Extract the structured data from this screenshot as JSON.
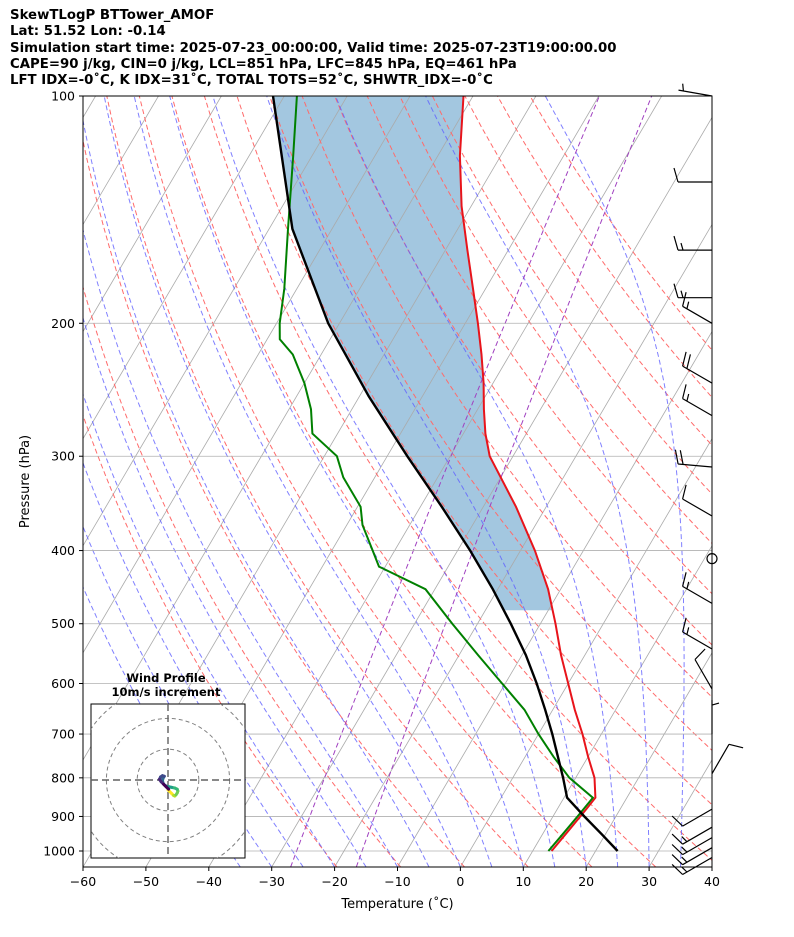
{
  "header": {
    "line1": "SkewTLogP BTTower_AMOF",
    "line2": "Lat: 51.52   Lon: -0.14",
    "line3": "Simulation start time: 2025-07-23_00:00:00, Valid time: 2025-07-23T19:00:00.00",
    "line4": "CAPE=90 j/kg, CIN=0 j/kg, LCL=851 hPa, LFC=845 hPa, EQ=461 hPa",
    "line5": "LFT IDX=-0˚C, K IDX=31˚C, TOTAL TOTS=52˚C, SHWTR_IDX=-0˚C"
  },
  "chart_data": {
    "type": "skewt",
    "xlabel": "Temperature (˚C)",
    "ylabel": "Pressure (hPa)",
    "xlim": [
      -60,
      40
    ],
    "ylim": [
      1050,
      100
    ],
    "x_ticks": [
      -60,
      -50,
      -40,
      -30,
      -20,
      -10,
      0,
      10,
      20,
      30,
      40
    ],
    "y_ticks": [
      100,
      200,
      300,
      400,
      500,
      600,
      700,
      800,
      900,
      1000
    ],
    "colors": {
      "temperature": "#e8141b",
      "dewpoint": "#008000",
      "parcel": "#000000",
      "cape_fill": "#a3c7e0",
      "dry_adiabats": "#ff6b6b",
      "moist_adiabats": "#6060ff",
      "mixing_ratio": "#a040c0",
      "isotherms": "#aaaaaa"
    },
    "temperature": {
      "p": [
        1000,
        940,
        880,
        850,
        800,
        750,
        700,
        650,
        600,
        550,
        500,
        450,
        400,
        350,
        300,
        280,
        260,
        240,
        220,
        200,
        180,
        160,
        140,
        120,
        100
      ],
      "t": [
        13.0,
        13.8,
        14.6,
        15.0,
        13.0,
        10.0,
        7.0,
        3.5,
        0.0,
        -3.8,
        -7.6,
        -12.0,
        -17.7,
        -24.8,
        -33.7,
        -36.5,
        -39.0,
        -41.5,
        -44.5,
        -48.0,
        -52.0,
        -56.5,
        -61.5,
        -66.5,
        -71.5
      ]
    },
    "dewpoint": {
      "p": [
        1000,
        950,
        900,
        850,
        800,
        750,
        700,
        650,
        600,
        550,
        500,
        450,
        420,
        400,
        370,
        350,
        320,
        300,
        280,
        260,
        240,
        220,
        210,
        200,
        180,
        150,
        120,
        100
      ],
      "td": [
        12.5,
        13.2,
        13.9,
        14.6,
        9.0,
        4.5,
        0.0,
        -4.5,
        -10.5,
        -17.0,
        -24.0,
        -31.5,
        -41.0,
        -43.5,
        -47.5,
        -49.5,
        -55.0,
        -58.0,
        -64.0,
        -66.5,
        -70.0,
        -74.5,
        -78.0,
        -79.5,
        -82.0,
        -87.0,
        -93.0,
        -98.0
      ]
    },
    "parcel": {
      "p": [
        1000,
        950,
        900,
        850,
        800,
        750,
        700,
        650,
        600,
        550,
        500,
        450,
        400,
        350,
        300,
        250,
        200,
        150,
        100
      ],
      "t": [
        23.5,
        19.4,
        15.0,
        10.5,
        8.0,
        5.2,
        2.2,
        -1.2,
        -5.0,
        -9.4,
        -14.7,
        -20.8,
        -28.0,
        -36.6,
        -46.8,
        -58.5,
        -71.8,
        -86.3,
        -101.8
      ]
    },
    "dry_adiabats_K": [
      250,
      260,
      270,
      280,
      290,
      300,
      310,
      320,
      330,
      340,
      350,
      360,
      370,
      380,
      390,
      400,
      410
    ],
    "moist_adiabats_C": [
      -35,
      -30,
      -25,
      -20,
      -15,
      -10,
      -5,
      0,
      5,
      10,
      15,
      20,
      25,
      30,
      35
    ],
    "mixing_ratios_gkg": [
      0.4,
      1.0
    ],
    "wind_barbs": [
      {
        "p": 100,
        "speed_kt": 5,
        "dir_deg": 280
      },
      {
        "p": 130,
        "speed_kt": 10,
        "dir_deg": 270
      },
      {
        "p": 160,
        "speed_kt": 15,
        "dir_deg": 270
      },
      {
        "p": 185,
        "speed_kt": 15,
        "dir_deg": 270
      },
      {
        "p": 200,
        "speed_kt": 15,
        "dir_deg": 300
      },
      {
        "p": 240,
        "speed_kt": 20,
        "dir_deg": 300
      },
      {
        "p": 265,
        "speed_kt": 15,
        "dir_deg": 300
      },
      {
        "p": 310,
        "speed_kt": 20,
        "dir_deg": 275
      },
      {
        "p": 360,
        "speed_kt": 10,
        "dir_deg": 300
      },
      {
        "p": 410,
        "speed_kt": 0,
        "dir_deg": 0
      },
      {
        "p": 470,
        "speed_kt": 15,
        "dir_deg": 300
      },
      {
        "p": 540,
        "speed_kt": 15,
        "dir_deg": 300
      },
      {
        "p": 610,
        "speed_kt": 10,
        "dir_deg": 330
      },
      {
        "p": 700,
        "speed_kt": 5,
        "dir_deg": 0
      },
      {
        "p": 790,
        "speed_kt": 10,
        "dir_deg": 30
      },
      {
        "p": 880,
        "speed_kt": 10,
        "dir_deg": 240
      },
      {
        "p": 930,
        "speed_kt": 15,
        "dir_deg": 240
      },
      {
        "p": 960,
        "speed_kt": 15,
        "dir_deg": 240
      },
      {
        "p": 990,
        "speed_kt": 15,
        "dir_deg": 240
      },
      {
        "p": 1020,
        "speed_kt": 15,
        "dir_deg": 240
      }
    ],
    "hodograph": {
      "title": "Wind Profile",
      "subtitle": "10m/s increment",
      "rings_ms": [
        10,
        20,
        30
      ],
      "max_ms": 25,
      "u": [
        0.0,
        0.6,
        1.2,
        1.8,
        2.2,
        2.6,
        3.0,
        3.2,
        3.0,
        2.2,
        1.2,
        0.3,
        -0.5,
        -1.2,
        -1.6,
        -1.8,
        -1.6,
        -1.2,
        -1.8,
        -2.4,
        -2.8,
        -2.2,
        -1.4,
        -0.6,
        0.2
      ],
      "v": [
        -3.2,
        -3.8,
        -4.4,
        -5.0,
        -5.2,
        -4.8,
        -4.2,
        -3.6,
        -3.0,
        -2.6,
        -2.4,
        -2.2,
        -2.0,
        -1.6,
        -1.0,
        -0.2,
        0.6,
        1.2,
        1.4,
        1.0,
        0.2,
        -0.6,
        -1.4,
        -2.2,
        -3.0
      ]
    }
  }
}
